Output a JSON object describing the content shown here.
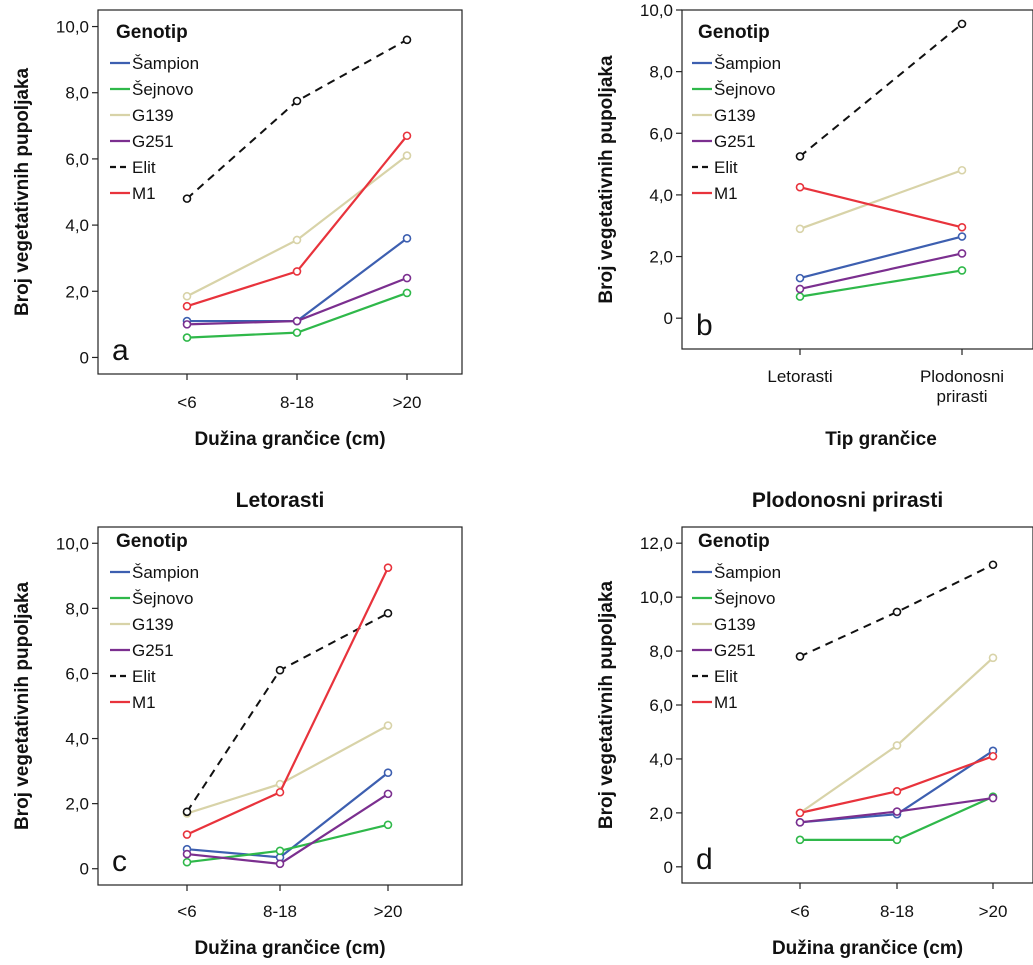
{
  "colors": {
    "Šampion": "#3d5fb0",
    "Šejnovo": "#2fb84a",
    "G139": "#d8d3a8",
    "G251": "#7b2f8f",
    "Elit": "#111111",
    "M1": "#e8333c"
  },
  "chart_data": [
    {
      "type": "line",
      "panel_label": "a",
      "title": "",
      "xlabel": "Dužina grančice (cm)",
      "ylabel": "Broj vegetativnih pupoljaka",
      "categories": [
        "<6",
        "8-18",
        ">20"
      ],
      "ylim": [
        -0.5,
        10.5
      ],
      "yticks": [
        0,
        2,
        4,
        6,
        8,
        10
      ],
      "ytick_labels": [
        "0",
        "2,0",
        "4,0",
        "6,0",
        "8,0",
        "10,0"
      ],
      "legend_title": "Genotip",
      "legend_position": "top-left",
      "series": [
        {
          "name": "Šampion",
          "values": [
            1.1,
            1.1,
            3.6
          ]
        },
        {
          "name": "Šejnovo",
          "values": [
            0.6,
            0.75,
            1.95
          ]
        },
        {
          "name": "G139",
          "values": [
            1.85,
            3.55,
            6.1
          ]
        },
        {
          "name": "G251",
          "values": [
            1.0,
            1.1,
            2.4
          ]
        },
        {
          "name": "Elit",
          "values": [
            4.8,
            7.75,
            9.6
          ],
          "dashed": true
        },
        {
          "name": "M1",
          "values": [
            1.55,
            2.6,
            6.7
          ]
        }
      ]
    },
    {
      "type": "line",
      "panel_label": "b",
      "title": "",
      "xlabel": "Tip grančice",
      "ylabel": "Broj vegetativnih pupoljaka",
      "categories": [
        "Letorasti",
        "Plodonosni prirasti"
      ],
      "ylim": [
        -1.0,
        10.0
      ],
      "yticks": [
        0,
        2,
        4,
        6,
        8,
        10
      ],
      "ytick_labels": [
        "0",
        "2,0",
        "4,0",
        "6,0",
        "8,0",
        "10,0"
      ],
      "legend_title": "Genotip",
      "legend_position": "top-left",
      "series": [
        {
          "name": "Šampion",
          "values": [
            1.3,
            2.65
          ]
        },
        {
          "name": "Šejnovo",
          "values": [
            0.7,
            1.55
          ]
        },
        {
          "name": "G139",
          "values": [
            2.9,
            4.8
          ]
        },
        {
          "name": "G251",
          "values": [
            0.95,
            2.1
          ]
        },
        {
          "name": "Elit",
          "values": [
            5.25,
            9.55
          ],
          "dashed": true
        },
        {
          "name": "M1",
          "values": [
            4.25,
            2.95
          ]
        }
      ]
    },
    {
      "type": "line",
      "panel_label": "c",
      "title": "Letorasti",
      "xlabel": "Dužina grančice (cm)",
      "ylabel": "Broj vegetativnih pupoljaka",
      "categories": [
        "<6",
        "8-18",
        ">20"
      ],
      "ylim": [
        -0.5,
        10.5
      ],
      "yticks": [
        0,
        2,
        4,
        6,
        8,
        10
      ],
      "ytick_labels": [
        "0",
        "2,0",
        "4,0",
        "6,0",
        "8,0",
        "10,0"
      ],
      "legend_title": "Genotip",
      "legend_position": "top-left",
      "series": [
        {
          "name": "Šampion",
          "values": [
            0.6,
            0.35,
            2.95
          ]
        },
        {
          "name": "Šejnovo",
          "values": [
            0.2,
            0.55,
            1.35
          ]
        },
        {
          "name": "G139",
          "values": [
            1.7,
            2.6,
            4.4
          ]
        },
        {
          "name": "G251",
          "values": [
            0.45,
            0.15,
            2.3
          ]
        },
        {
          "name": "Elit",
          "values": [
            1.75,
            6.1,
            7.85
          ],
          "dashed": true
        },
        {
          "name": "M1",
          "values": [
            1.05,
            2.35,
            9.25
          ]
        }
      ]
    },
    {
      "type": "line",
      "panel_label": "d",
      "title": "Plodonosni prirasti",
      "xlabel": "Dužina grančice (cm)",
      "ylabel": "Broj vegetativnih pupoljaka",
      "categories": [
        "<6",
        "8-18",
        ">20"
      ],
      "ylim": [
        -0.6,
        12.6
      ],
      "yticks": [
        0,
        2,
        4,
        6,
        8,
        10,
        12
      ],
      "ytick_labels": [
        "0",
        "2,0",
        "4,0",
        "6,0",
        "8,0",
        "10,0",
        "12,0"
      ],
      "legend_title": "Genotip",
      "legend_position": "top-left",
      "series": [
        {
          "name": "Šampion",
          "values": [
            1.65,
            1.95,
            4.3
          ]
        },
        {
          "name": "Šejnovo",
          "values": [
            1.0,
            1.0,
            2.6
          ]
        },
        {
          "name": "G139",
          "values": [
            2.0,
            4.5,
            7.75
          ]
        },
        {
          "name": "G251",
          "values": [
            1.65,
            2.05,
            2.55
          ]
        },
        {
          "name": "Elit",
          "values": [
            7.8,
            9.45,
            11.2
          ],
          "dashed": true
        },
        {
          "name": "M1",
          "values": [
            2.0,
            2.8,
            4.1
          ]
        }
      ]
    }
  ]
}
